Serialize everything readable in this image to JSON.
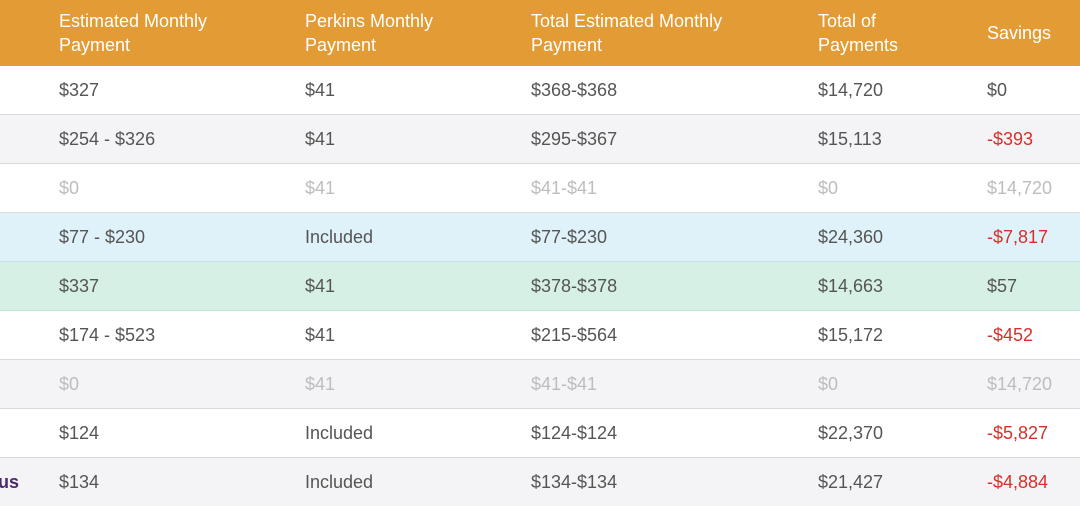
{
  "header": {
    "col1": "Estimated Monthly\nPayment",
    "col2": "Perkins Monthly\nPayment",
    "col3": "Total Estimated Monthly\nPayment",
    "col4": "Total of\nPayments",
    "col5": "Savings"
  },
  "colors": {
    "header_bg": "#e39b36",
    "negative": "#d6302a",
    "highlight_blue": "#dff2f9",
    "highlight_green": "#d6f0e5",
    "muted_text": "#bdbdbd"
  },
  "rows": [
    {
      "plan": "",
      "monthly": "$327",
      "perkins": "$41",
      "total_monthly": "$368-$368",
      "total_payments": "$14,720",
      "savings": "$0"
    },
    {
      "plan": "",
      "monthly": "$254 - $326",
      "perkins": "$41",
      "total_monthly": "$295-$367",
      "total_payments": "$15,113",
      "savings": "-$393"
    },
    {
      "plan": "",
      "monthly": "$0",
      "perkins": "$41",
      "total_monthly": "$41-$41",
      "total_payments": "$0",
      "savings": "$14,720"
    },
    {
      "plan": "",
      "monthly": "$77 - $230",
      "perkins": "Included",
      "total_monthly": "$77-$230",
      "total_payments": "$24,360",
      "savings": "-$7,817"
    },
    {
      "plan": "",
      "monthly": "$337",
      "perkins": "$41",
      "total_monthly": "$378-$378",
      "total_payments": "$14,663",
      "savings": "$57"
    },
    {
      "plan": "",
      "monthly": "$174 - $523",
      "perkins": "$41",
      "total_monthly": "$215-$564",
      "total_payments": "$15,172",
      "savings": "-$452"
    },
    {
      "plan": "",
      "monthly": "$0",
      "perkins": "$41",
      "total_monthly": "$41-$41",
      "total_payments": "$0",
      "savings": "$14,720"
    },
    {
      "plan": "",
      "monthly": "$124",
      "perkins": "Included",
      "total_monthly": "$124-$124",
      "total_payments": "$22,370",
      "savings": "-$5,827"
    },
    {
      "plan": "us",
      "monthly": "$134",
      "perkins": "Included",
      "total_monthly": "$134-$134",
      "total_payments": "$21,427",
      "savings": "-$4,884"
    }
  ]
}
